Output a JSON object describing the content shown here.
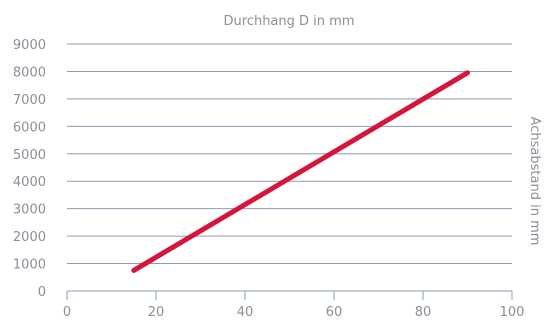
{
  "chart_data": {
    "type": "line",
    "title": "",
    "xlabel": "Durchhang D in mm",
    "ylabel": "Achsabstand in mm",
    "xlim": [
      0,
      100
    ],
    "ylim": [
      0,
      9000
    ],
    "xticks": [
      0,
      20,
      40,
      60,
      80,
      100
    ],
    "yticks": [
      0,
      1000,
      2000,
      3000,
      4000,
      5000,
      6000,
      7000,
      8000,
      9000
    ],
    "grid": true,
    "series": [
      {
        "name": "",
        "color": "#d6153a",
        "x": [
          15,
          90
        ],
        "y": [
          750,
          7950
        ]
      }
    ]
  },
  "colors": {
    "grid": "#8a9db3",
    "text": "#8a8f99",
    "line": "#d6153a"
  }
}
